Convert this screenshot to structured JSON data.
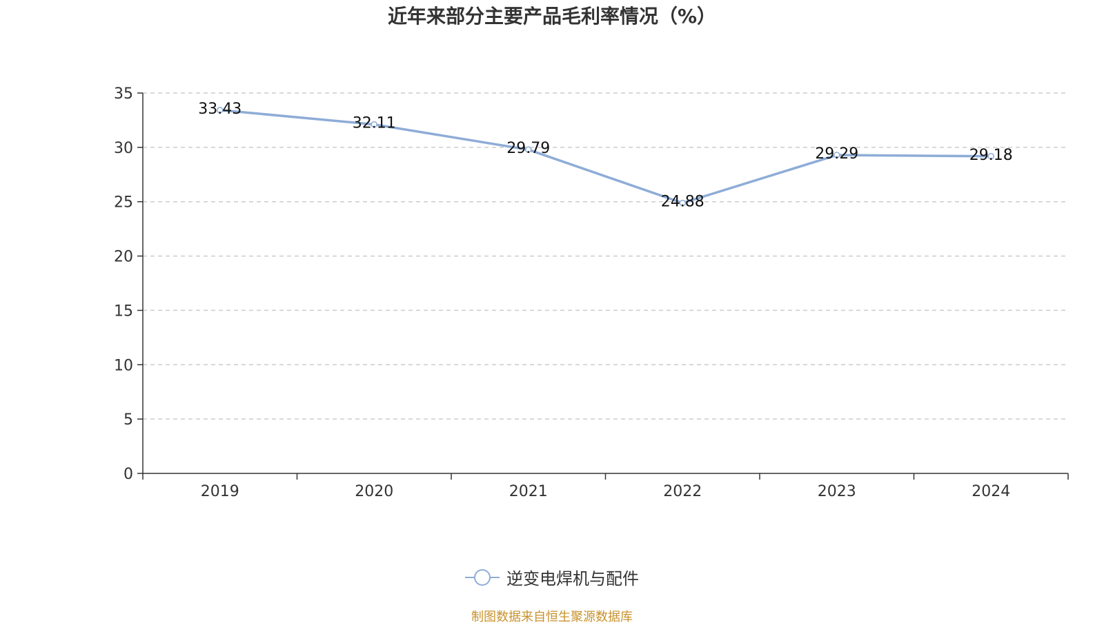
{
  "title": "近年来部分主要产品毛利率情况（%）",
  "source": "制图数据来自恒生聚源数据库",
  "colors": {
    "series": "#8eacd7",
    "axis": "#333333",
    "grid": "#cccccc",
    "source": "#c8922c"
  },
  "chart_data": {
    "type": "line",
    "title": "近年来部分主要产品毛利率情况（%）",
    "categories": [
      "2019",
      "2020",
      "2021",
      "2022",
      "2023",
      "2024"
    ],
    "series": [
      {
        "name": "逆变电焊机与配件",
        "values": [
          33.43,
          32.11,
          29.79,
          24.88,
          29.29,
          29.18
        ],
        "labels": [
          "33.43",
          "32.11",
          "29.79",
          "24.88",
          "29.29",
          "29.18"
        ]
      }
    ],
    "ylim": [
      0,
      35
    ],
    "yticks": [
      0,
      5,
      10,
      15,
      20,
      25,
      30,
      35
    ],
    "grid": true,
    "grid_style": "dashed",
    "legend_position": "bottom-center",
    "xlabel": "",
    "ylabel": ""
  }
}
